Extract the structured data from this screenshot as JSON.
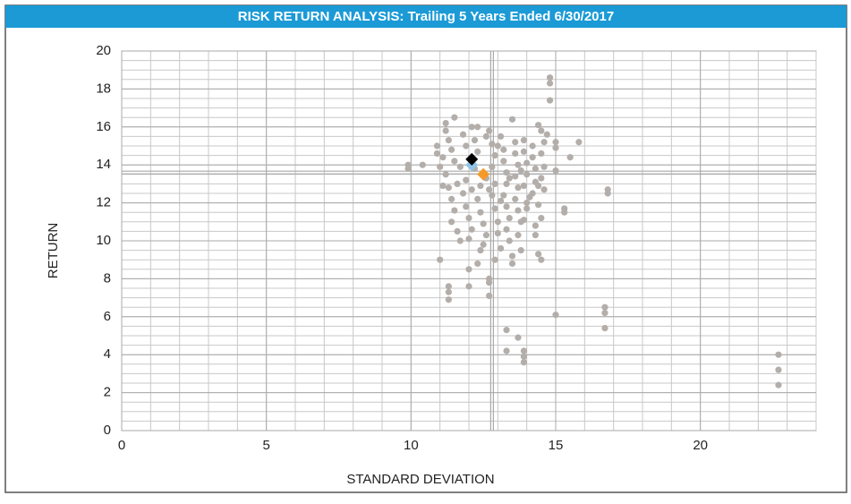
{
  "chart_data": {
    "type": "scatter",
    "title": "RISK RETURN ANALYSIS: Trailing 5 Years Ended 6/30/2017",
    "x_label": "STANDARD DEVIATION",
    "y_label": "RETURN",
    "xlim": [
      0,
      24
    ],
    "ylim": [
      0,
      20
    ],
    "xticks": [
      0,
      5,
      10,
      15,
      20
    ],
    "yticks": [
      0,
      2,
      4,
      6,
      8,
      10,
      12,
      14,
      16,
      18,
      20
    ],
    "x_minor_step": 1,
    "y_minor_step": 0.5,
    "grid": true,
    "reference_x": 12.8,
    "reference_y": 13.6,
    "series": [
      {
        "color": "#b3aeaa",
        "marker": "circle",
        "x": [
          9.9,
          9.9,
          10.4,
          11.0,
          11.3,
          11.3,
          11.3,
          12.0,
          12.0,
          12.3,
          12.7,
          12.7,
          12.7,
          13.3,
          13.3,
          13.7,
          13.9,
          13.9,
          13.9,
          15.0,
          16.7,
          16.7,
          16.7,
          16.8,
          16.8,
          15.8,
          15.5,
          14.8,
          14.8,
          14.8,
          15.0,
          15.0,
          15.0,
          15.3,
          15.3,
          22.7,
          22.7,
          22.7,
          14.4,
          14.0,
          14.3,
          14.4,
          14.5,
          13.9,
          12.3,
          11.5,
          11.2,
          10.9,
          10.9,
          11.0,
          11.2,
          11.3,
          11.4,
          11.5,
          11.2,
          11.3,
          11.4,
          11.5,
          11.4,
          11.6,
          11.7,
          11.8,
          11.9,
          11.9,
          11.8,
          11.9,
          12.0,
          12.1,
          12.0,
          12.2,
          12.3,
          12.4,
          12.3,
          12.4,
          12.5,
          12.6,
          12.5,
          12.7,
          12.8,
          12.9,
          12.8,
          12.9,
          12.8,
          12.9,
          13.0,
          13.0,
          13.1,
          13.1,
          13.2,
          13.2,
          13.3,
          13.3,
          13.2,
          13.3,
          13.4,
          13.3,
          13.4,
          13.5,
          13.5,
          13.6,
          13.6,
          13.7,
          13.6,
          13.7,
          13.6,
          13.7,
          13.8,
          13.7,
          13.8,
          13.9,
          13.9,
          14.0,
          14.0,
          13.9,
          14.1,
          14.0,
          14.2,
          14.2,
          14.3,
          14.3,
          14.2,
          14.4,
          14.5,
          14.6,
          14.5,
          14.6,
          14.5,
          14.6,
          14.7,
          12.1,
          12.6,
          13.5,
          13.0,
          12.2,
          12.6,
          12.1,
          12.7,
          13.1,
          13.4,
          13.8,
          11.6,
          11.7,
          11.1,
          11.1,
          12.4,
          12.9,
          14.3,
          14.5,
          14.4
        ],
        "values": [
          14.0,
          13.8,
          14.0,
          9.0,
          7.6,
          7.3,
          6.9,
          8.5,
          7.6,
          8.8,
          8.0,
          7.8,
          7.1,
          5.3,
          4.2,
          4.9,
          4.2,
          3.9,
          3.6,
          6.1,
          6.5,
          6.2,
          5.4,
          12.5,
          12.7,
          15.2,
          14.4,
          18.6,
          18.3,
          17.4,
          15.2,
          14.9,
          13.7,
          11.7,
          11.5,
          4.0,
          3.2,
          2.4,
          16.1,
          12.0,
          10.8,
          9.3,
          9.0,
          11.1,
          16.0,
          16.5,
          16.2,
          15.0,
          14.6,
          13.9,
          15.8,
          15.3,
          14.8,
          14.2,
          13.5,
          12.8,
          12.2,
          11.6,
          11.0,
          10.5,
          10.0,
          15.6,
          15.0,
          13.2,
          12.5,
          11.8,
          11.2,
          10.6,
          10.1,
          15.3,
          14.7,
          12.9,
          12.2,
          11.5,
          10.9,
          10.3,
          9.8,
          15.8,
          15.1,
          14.5,
          13.9,
          13.0,
          12.4,
          11.7,
          11.0,
          10.4,
          9.6,
          15.5,
          14.8,
          14.2,
          13.6,
          13.0,
          12.4,
          11.8,
          11.2,
          10.6,
          10.0,
          9.2,
          8.8,
          15.2,
          14.6,
          14.0,
          13.4,
          12.8,
          12.2,
          11.6,
          11.0,
          10.3,
          9.5,
          15.3,
          14.7,
          14.1,
          13.5,
          12.9,
          12.3,
          11.7,
          15.0,
          14.4,
          13.8,
          13.1,
          12.5,
          11.9,
          15.8,
          15.2,
          14.6,
          13.9,
          13.3,
          12.7,
          15.6,
          16.0,
          15.5,
          16.4,
          15.0,
          13.8,
          13.3,
          12.7,
          12.7,
          12.1,
          13.3,
          13.7,
          13.0,
          13.9,
          14.4,
          12.9,
          9.5,
          9.0,
          10.3,
          11.2,
          12.9
        ]
      },
      {
        "color": "#8ec3e8",
        "marker": "diamond",
        "x": [
          12.1
        ],
        "values": [
          14.0
        ]
      },
      {
        "color": "#f39a2b",
        "marker": "diamond",
        "x": [
          12.5
        ],
        "values": [
          13.5
        ]
      },
      {
        "color": "#000000",
        "marker": "diamond",
        "x": [
          12.1
        ],
        "values": [
          14.3
        ]
      }
    ]
  }
}
